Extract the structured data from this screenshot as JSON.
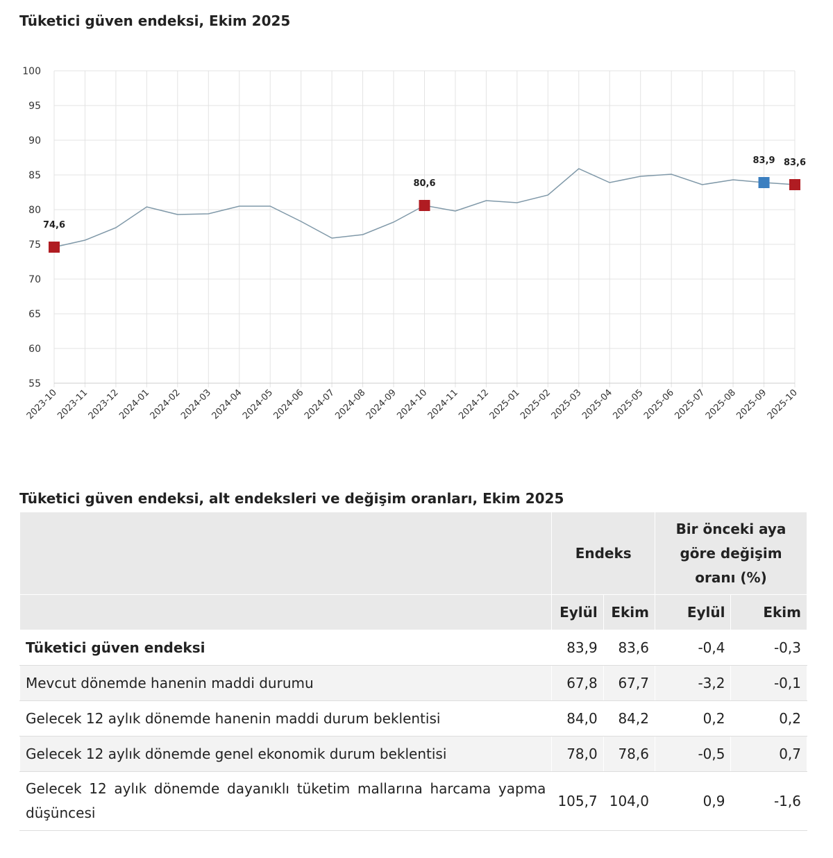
{
  "chart_data": {
    "type": "line",
    "title": "Tüketici güven endeksi, Ekim 2025",
    "categories": [
      "2023-10",
      "2023-11",
      "2023-12",
      "2024-01",
      "2024-02",
      "2024-03",
      "2024-04",
      "2024-05",
      "2024-06",
      "2024-07",
      "2024-08",
      "2024-09",
      "2024-10",
      "2024-11",
      "2024-12",
      "2025-01",
      "2025-02",
      "2025-03",
      "2025-04",
      "2025-05",
      "2025-06",
      "2025-07",
      "2025-08",
      "2025-09",
      "2025-10"
    ],
    "values": [
      74.6,
      75.6,
      77.4,
      80.4,
      79.3,
      79.4,
      80.5,
      80.5,
      78.3,
      75.9,
      76.4,
      78.2,
      80.6,
      79.8,
      81.3,
      81.0,
      82.1,
      85.9,
      83.9,
      84.8,
      85.1,
      83.6,
      84.3,
      83.9,
      83.6
    ],
    "ylim": [
      55,
      100
    ],
    "yticks": [
      55,
      60,
      65,
      70,
      75,
      80,
      85,
      90,
      95,
      100
    ],
    "grid": true,
    "line_color": "#7f98a8",
    "markers": [
      {
        "index": 0,
        "label": "74,6",
        "color": "#b01c22"
      },
      {
        "index": 12,
        "label": "80,6",
        "color": "#b01c22"
      },
      {
        "index": 23,
        "label": "83,9",
        "color": "#3b7fc0"
      },
      {
        "index": 24,
        "label": "83,6",
        "color": "#b01c22"
      }
    ]
  },
  "table": {
    "title": "Tüketici güven endeksi, alt endeksleri ve değişim oranları, Ekim 2025",
    "header_endeks": "Endeks",
    "header_change": "Bir önceki aya göre değişim oranı (%)",
    "sub": [
      "Eylül",
      "Ekim",
      "Eylül",
      "Ekim"
    ],
    "rows": [
      {
        "label": "Tüketici güven endeksi",
        "v": [
          "83,9",
          "83,6",
          "-0,4",
          "-0,3"
        ]
      },
      {
        "label": "Mevcut dönemde hanenin maddi durumu",
        "v": [
          "67,8",
          "67,7",
          "-3,2",
          "-0,1"
        ]
      },
      {
        "label": "Gelecek 12 aylık dönemde hanenin maddi durum beklentisi",
        "v": [
          "84,0",
          "84,2",
          "0,2",
          "0,2"
        ]
      },
      {
        "label": "Gelecek 12 aylık dönemde genel ekonomik durum beklentisi",
        "v": [
          "78,0",
          "78,6",
          "-0,5",
          "0,7"
        ]
      },
      {
        "label": "Gelecek 12 aylık dönemde dayanıklı tüketim mallarına harcama yapma düşüncesi",
        "v": [
          "105,7",
          "104,0",
          "0,9",
          "-1,6"
        ]
      }
    ]
  }
}
